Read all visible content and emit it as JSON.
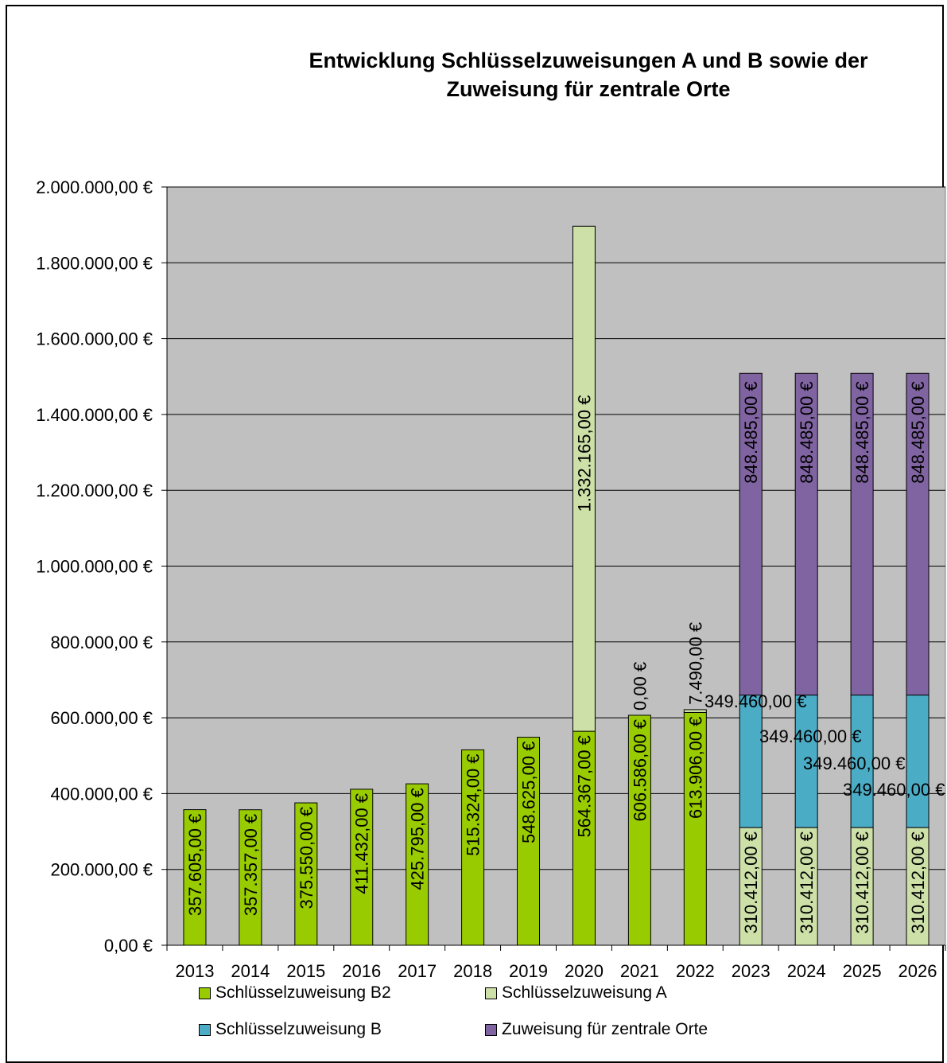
{
  "chart_data": {
    "type": "bar",
    "stacked": true,
    "title": "Entwicklung Schlüsselzuweisungen A und B sowie der\nZuweisung für zentrale Orte",
    "categories": [
      "2013",
      "2014",
      "2015",
      "2016",
      "2017",
      "2018",
      "2019",
      "2020",
      "2021",
      "2022",
      "2023",
      "2024",
      "2025",
      "2026"
    ],
    "ylim": [
      0,
      2000000
    ],
    "yticks": [
      "0,00 €",
      "200.000,00 €",
      "400.000,00 €",
      "600.000,00 €",
      "800.000,00 €",
      "1.000.000,00 €",
      "1.200.000,00 €",
      "1.400.000,00 €",
      "1.600.000,00 €",
      "1.800.000,00 €",
      "2.000.000,00 €"
    ],
    "grid": true,
    "legend_position": "bottom",
    "series": [
      {
        "name": "Schlüsselzuweisung B2",
        "color": "#99cc00",
        "values": [
          357605,
          357357,
          375550,
          411432,
          425795,
          515324,
          548625,
          564367,
          606586,
          613906,
          0,
          0,
          0,
          0
        ],
        "labels": [
          "357.605,00 €",
          "357.357,00 €",
          "375.550,00 €",
          "411.432,00 €",
          "425.795,00 €",
          "515.324,00 €",
          "548.625,00 €",
          "564.367,00 €",
          "606.586,00 €",
          "613.906,00 €",
          "",
          "",
          "",
          ""
        ]
      },
      {
        "name": "Schlüsselzuweisung A",
        "color": "#cde0a8",
        "values": [
          0,
          0,
          0,
          0,
          0,
          0,
          0,
          1332165,
          0,
          7490,
          310412,
          310412,
          310412,
          310412
        ],
        "labels": [
          "",
          "",
          "",
          "",
          "",
          "",
          "",
          "1.332.165,00 €",
          "0,00 €",
          "7.490,00 €",
          "310.412,00 €",
          "310.412,00 €",
          "310.412,00 €",
          "310.412,00 €"
        ]
      },
      {
        "name": "Schlüsselzuweisung B",
        "color": "#4bacc6",
        "values": [
          0,
          0,
          0,
          0,
          0,
          0,
          0,
          0,
          0,
          0,
          349460,
          349460,
          349460,
          349460
        ],
        "labels": [
          "",
          "",
          "",
          "",
          "",
          "",
          "",
          "",
          "",
          "",
          "349.460,00 €",
          "349.460,00 €",
          "349.460,00 €",
          "349.460,00 €"
        ]
      },
      {
        "name": "Zuweisung für zentrale Orte",
        "color": "#8064a2",
        "values": [
          0,
          0,
          0,
          0,
          0,
          0,
          0,
          0,
          0,
          0,
          848485,
          848485,
          848485,
          848485
        ],
        "labels": [
          "",
          "",
          "",
          "",
          "",
          "",
          "",
          "",
          "",
          "",
          "848.485,00 €",
          "848.485,00 €",
          "848.485,00 €",
          "848.485,00 €"
        ]
      }
    ],
    "legend": [
      "Schlüsselzuweisung B2",
      "Schlüsselzuweisung A",
      "Schlüsselzuweisung B",
      "Zuweisung für zentrale Orte"
    ],
    "plot_background": "#c0c0c0"
  }
}
